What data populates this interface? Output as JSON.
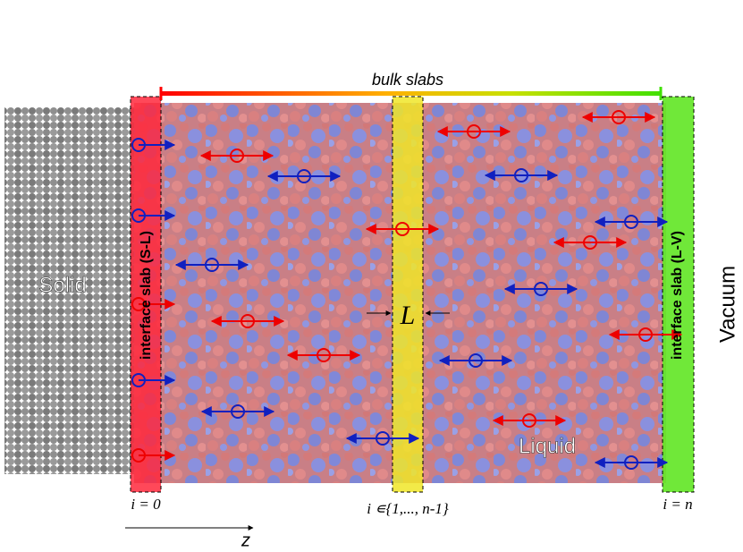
{
  "labels": {
    "bulk": "bulk slabs",
    "solid": "Solid",
    "liquid": "Liquid",
    "vacuum": "Vacuum",
    "slab_sl": "interface slab (S-L)",
    "slab_lv": "interface slab (L-V)",
    "length": "L",
    "index_first": "i = 0",
    "index_bulk": "i ∊{1,..., n-1}",
    "index_last": "i = n",
    "axis": "z"
  }
}
